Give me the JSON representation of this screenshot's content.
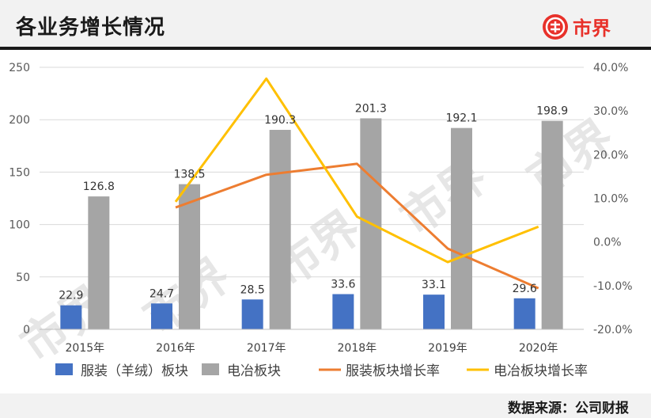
{
  "title": "各业务增长情况",
  "logo_text": "市界",
  "source": "数据来源：公司财报",
  "watermark": "市界",
  "colors": {
    "bar1": "#4472c4",
    "bar2": "#a5a5a5",
    "line1": "#ed7d31",
    "line2": "#ffc000",
    "accent": "#e8312a"
  },
  "chart_data": {
    "type": "bar",
    "categories": [
      "2015年",
      "2016年",
      "2017年",
      "2018年",
      "2019年",
      "2020年"
    ],
    "series": [
      {
        "name": "服装（羊绒）板块",
        "type": "bar",
        "axis": "left",
        "values": [
          22.9,
          24.7,
          28.5,
          33.6,
          33.1,
          29.6
        ],
        "labels": [
          "22.9",
          "24.7",
          "28.5",
          "33.6",
          "33.1",
          "29.6"
        ]
      },
      {
        "name": "电冶板块",
        "type": "bar",
        "axis": "left",
        "values": [
          126.8,
          138.5,
          190.3,
          201.3,
          192.1,
          198.9
        ],
        "labels": [
          "126.8",
          "138.5",
          "190.3",
          "201.3",
          "192.1",
          "198.9"
        ]
      },
      {
        "name": "服装板块增长率",
        "type": "line",
        "axis": "right",
        "values": [
          null,
          7.9,
          15.4,
          17.9,
          -1.5,
          -10.6
        ]
      },
      {
        "name": "电冶板块增长率",
        "type": "line",
        "axis": "right",
        "values": [
          null,
          9.2,
          37.4,
          5.8,
          -4.6,
          3.5
        ]
      }
    ],
    "left_axis": {
      "ylim": [
        0,
        250
      ],
      "ticks": [
        "0",
        "50",
        "100",
        "150",
        "200",
        "250"
      ],
      "tick_values": [
        0,
        50,
        100,
        150,
        200,
        250
      ]
    },
    "right_axis": {
      "ylim": [
        -20,
        40
      ],
      "ticks": [
        "-20.0%",
        "-10.0%",
        "0.0%",
        "10.0%",
        "20.0%",
        "30.0%",
        "40.0%"
      ],
      "tick_values": [
        -20,
        -10,
        0,
        10,
        20,
        30,
        40
      ]
    },
    "grid": true,
    "legend_position": "bottom"
  }
}
